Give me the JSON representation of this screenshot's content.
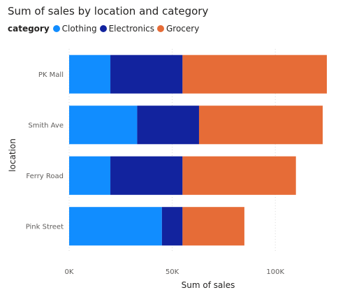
{
  "chart_data": {
    "type": "bar",
    "orientation": "horizontal",
    "stacked": true,
    "title": "Sum of sales by location and category",
    "xlabel": "Sum of sales",
    "ylabel": "location",
    "legend_title": "category",
    "legend_position": "top-left",
    "categories": [
      "PK Mall",
      "Smith Ave",
      "Ferry Road",
      "Pink Street"
    ],
    "series": [
      {
        "name": "Clothing",
        "color": "#118dff",
        "values": [
          20000,
          33000,
          20000,
          45000
        ]
      },
      {
        "name": "Electronics",
        "color": "#12239e",
        "values": [
          35000,
          30000,
          35000,
          10000
        ]
      },
      {
        "name": "Grocery",
        "color": "#e66c37",
        "values": [
          70000,
          60000,
          55000,
          30000
        ]
      }
    ],
    "xlim": [
      0,
      125000
    ],
    "xticks": [
      0,
      50000,
      100000
    ],
    "xtick_labels": [
      "0K",
      "50K",
      "100K"
    ],
    "grid": "vertical"
  }
}
